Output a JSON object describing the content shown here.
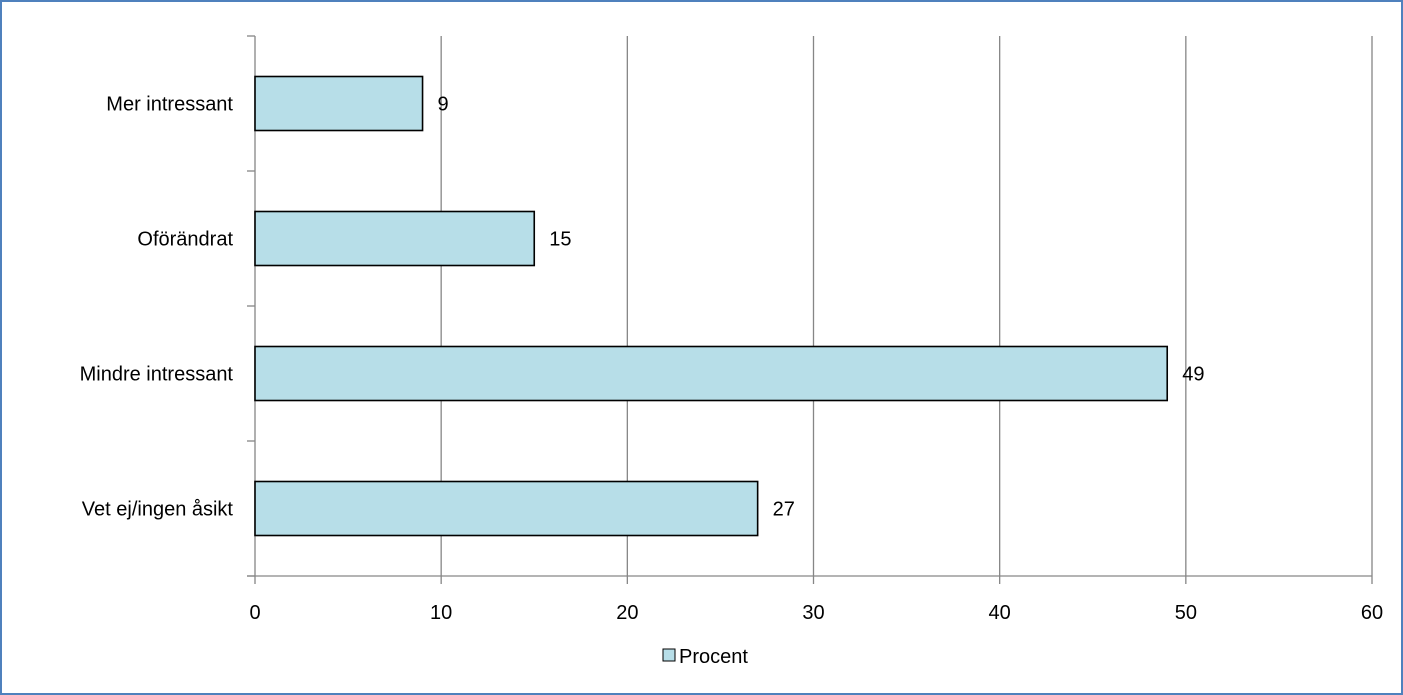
{
  "style": {
    "background": "#ffffff",
    "frame_border": "#4f81bd",
    "bar_fill": "#b7dee8",
    "bar_stroke": "#000000",
    "grid_color": "#868686",
    "axis_color": "#868686",
    "text_color": "#000000"
  },
  "chart_data": {
    "type": "bar",
    "orientation": "horizontal",
    "categories": [
      "Mer intressant",
      "Oförändrat",
      "Mindre intressant",
      "Vet ej/ingen åsikt"
    ],
    "series": [
      {
        "name": "Procent",
        "values": [
          9,
          15,
          49,
          27
        ],
        "data_labels": [
          "9",
          "15",
          "49",
          "27"
        ]
      }
    ],
    "title": "",
    "xlabel": "",
    "ylabel": "",
    "xlim": [
      0,
      60
    ],
    "x_ticks": [
      0,
      10,
      20,
      30,
      40,
      50,
      60
    ],
    "x_tick_labels": [
      "0",
      "10",
      "20",
      "30",
      "40",
      "50",
      "60"
    ],
    "grid": "vertical-major",
    "legend": {
      "position": "bottom",
      "entries": [
        "Procent"
      ]
    }
  }
}
